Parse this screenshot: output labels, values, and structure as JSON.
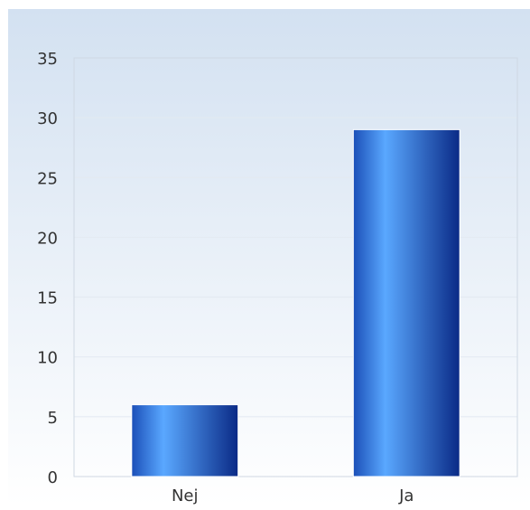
{
  "chart_data": {
    "type": "bar",
    "categories": [
      "Nej",
      "Ja"
    ],
    "values": [
      6,
      29
    ],
    "ylim": [
      0,
      35
    ],
    "yticks": [
      0,
      5,
      10,
      15,
      20,
      25,
      30,
      35
    ],
    "title": "",
    "xlabel": "",
    "ylabel": "",
    "grid": true,
    "legend": "none"
  },
  "colors": {
    "background_top": "#d3e1f1",
    "background_bottom": "#ffffff",
    "bar_dark_left": "#1b4fb8",
    "bar_light": "#5aa8ff",
    "bar_dark_right": "#0a2a86",
    "grid": "#e3e9f1",
    "plot_border": "#cfd8e3",
    "tick_text": "#333333"
  }
}
